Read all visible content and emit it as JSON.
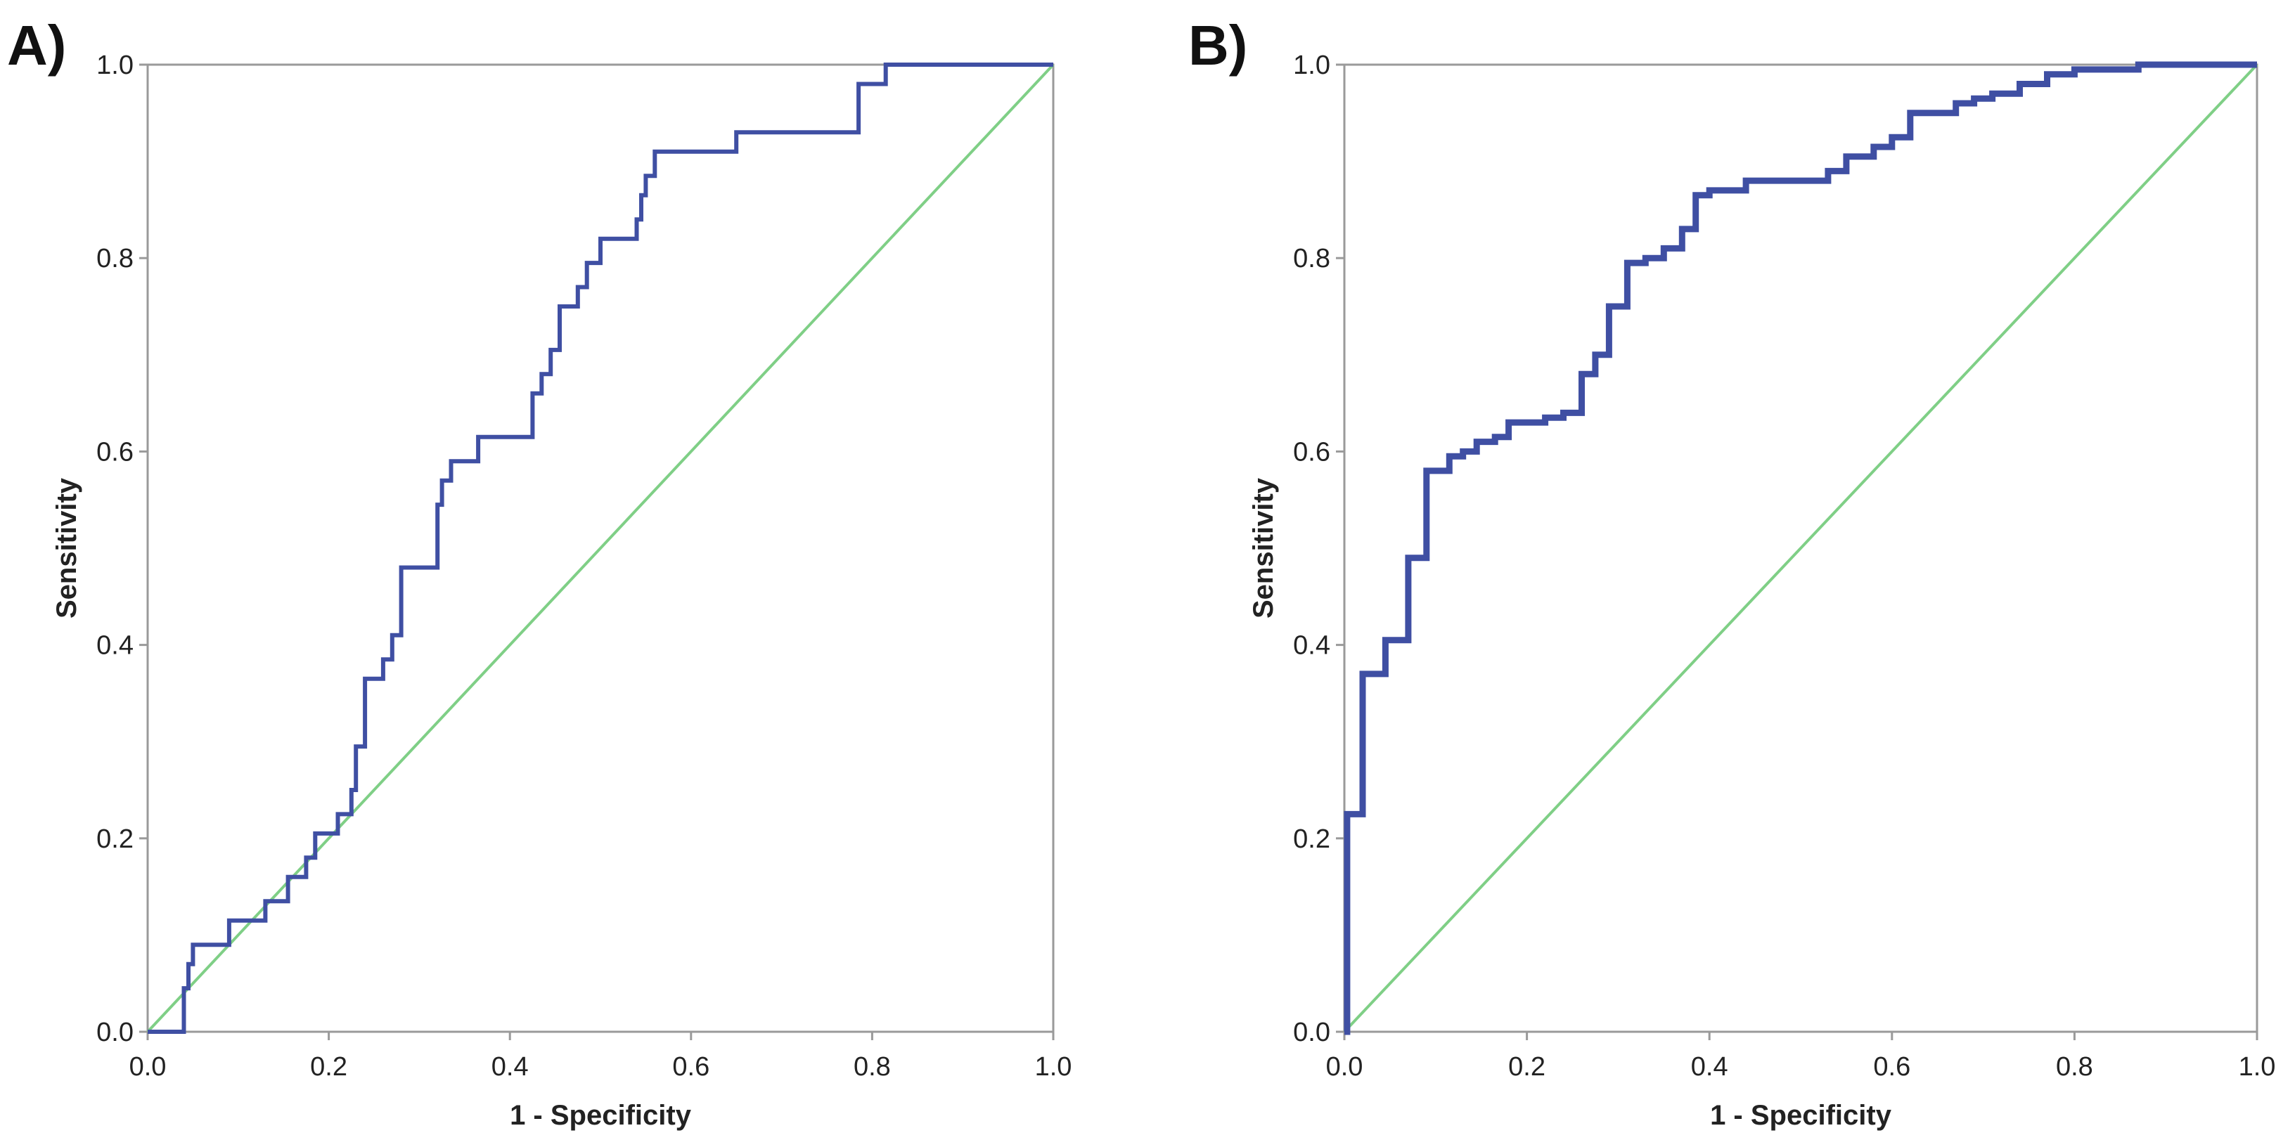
{
  "colors": {
    "roc": "#3f4fa3",
    "reference": "#7fcf86",
    "frame": "#9a9a9a"
  },
  "chart_data": [
    {
      "id": "A",
      "panel_label": "A)",
      "type": "line",
      "xlabel": "1 - Specificity",
      "ylabel": "Sensitivity",
      "xlim": [
        0,
        1
      ],
      "ylim": [
        0,
        1
      ],
      "xticks": [
        "0.0",
        "0.2",
        "0.4",
        "0.6",
        "0.8",
        "1.0"
      ],
      "yticks": [
        "0.0",
        "0.2",
        "0.4",
        "0.6",
        "0.8",
        "1.0"
      ],
      "series": [
        {
          "name": "ROC curve",
          "x": [
            0,
            0.04,
            0.04,
            0.045,
            0.045,
            0.05,
            0.05,
            0.09,
            0.09,
            0.13,
            0.13,
            0.155,
            0.155,
            0.175,
            0.175,
            0.185,
            0.185,
            0.21,
            0.21,
            0.225,
            0.225,
            0.23,
            0.23,
            0.24,
            0.24,
            0.26,
            0.26,
            0.27,
            0.27,
            0.28,
            0.28,
            0.32,
            0.32,
            0.325,
            0.325,
            0.335,
            0.335,
            0.365,
            0.365,
            0.425,
            0.425,
            0.435,
            0.435,
            0.445,
            0.445,
            0.455,
            0.455,
            0.475,
            0.475,
            0.485,
            0.485,
            0.5,
            0.5,
            0.54,
            0.54,
            0.545,
            0.545,
            0.55,
            0.55,
            0.56,
            0.56,
            0.65,
            0.65,
            0.785,
            0.785,
            0.815,
            0.815,
            1.0
          ],
          "y": [
            0,
            0,
            0.045,
            0.045,
            0.07,
            0.07,
            0.09,
            0.09,
            0.115,
            0.115,
            0.135,
            0.135,
            0.16,
            0.16,
            0.18,
            0.18,
            0.205,
            0.205,
            0.225,
            0.225,
            0.25,
            0.25,
            0.295,
            0.295,
            0.365,
            0.365,
            0.385,
            0.385,
            0.41,
            0.41,
            0.48,
            0.48,
            0.545,
            0.545,
            0.57,
            0.57,
            0.59,
            0.59,
            0.615,
            0.615,
            0.66,
            0.66,
            0.68,
            0.68,
            0.705,
            0.705,
            0.75,
            0.75,
            0.77,
            0.77,
            0.795,
            0.795,
            0.82,
            0.82,
            0.84,
            0.84,
            0.865,
            0.865,
            0.885,
            0.885,
            0.91,
            0.91,
            0.93,
            0.93,
            0.98,
            0.98,
            1.0,
            1.0
          ]
        },
        {
          "name": "Reference line",
          "x": [
            0,
            1
          ],
          "y": [
            0,
            1
          ]
        }
      ]
    },
    {
      "id": "B",
      "panel_label": "B)",
      "type": "line",
      "xlabel": "1 - Specificity",
      "ylabel": "Sensitivity",
      "xlim": [
        0,
        1
      ],
      "ylim": [
        0,
        1
      ],
      "xticks": [
        "0.0",
        "0.2",
        "0.4",
        "0.6",
        "0.8",
        "1.0"
      ],
      "yticks": [
        "0.0",
        "0.2",
        "0.4",
        "0.6",
        "0.8",
        "1.0"
      ],
      "series": [
        {
          "name": "ROC curve",
          "x": [
            0,
            0.003,
            0.003,
            0.02,
            0.02,
            0.045,
            0.045,
            0.07,
            0.07,
            0.09,
            0.09,
            0.115,
            0.115,
            0.13,
            0.13,
            0.145,
            0.145,
            0.165,
            0.165,
            0.18,
            0.18,
            0.22,
            0.22,
            0.24,
            0.24,
            0.26,
            0.26,
            0.275,
            0.275,
            0.29,
            0.29,
            0.31,
            0.31,
            0.33,
            0.33,
            0.35,
            0.35,
            0.37,
            0.37,
            0.385,
            0.385,
            0.4,
            0.4,
            0.44,
            0.44,
            0.53,
            0.53,
            0.55,
            0.55,
            0.58,
            0.58,
            0.6,
            0.6,
            0.62,
            0.62,
            0.67,
            0.67,
            0.69,
            0.69,
            0.71,
            0.71,
            0.74,
            0.74,
            0.77,
            0.77,
            0.8,
            0.8,
            0.87,
            0.87,
            0.9,
            0.9,
            0.97,
            0.97,
            1.0
          ],
          "y": [
            0,
            0,
            0.225,
            0.225,
            0.37,
            0.37,
            0.405,
            0.405,
            0.49,
            0.49,
            0.58,
            0.58,
            0.595,
            0.595,
            0.6,
            0.6,
            0.61,
            0.61,
            0.615,
            0.615,
            0.63,
            0.63,
            0.635,
            0.635,
            0.64,
            0.64,
            0.68,
            0.68,
            0.7,
            0.7,
            0.75,
            0.75,
            0.795,
            0.795,
            0.8,
            0.8,
            0.81,
            0.81,
            0.83,
            0.83,
            0.865,
            0.865,
            0.87,
            0.87,
            0.88,
            0.88,
            0.89,
            0.89,
            0.905,
            0.905,
            0.915,
            0.915,
            0.925,
            0.925,
            0.95,
            0.95,
            0.96,
            0.96,
            0.965,
            0.965,
            0.97,
            0.97,
            0.98,
            0.98,
            0.99,
            0.99,
            0.995,
            0.995,
            1.0,
            1.0,
            1.0,
            1.0,
            1.0,
            1.0
          ]
        },
        {
          "name": "Reference line",
          "x": [
            0,
            1
          ],
          "y": [
            0,
            1
          ]
        }
      ]
    }
  ]
}
